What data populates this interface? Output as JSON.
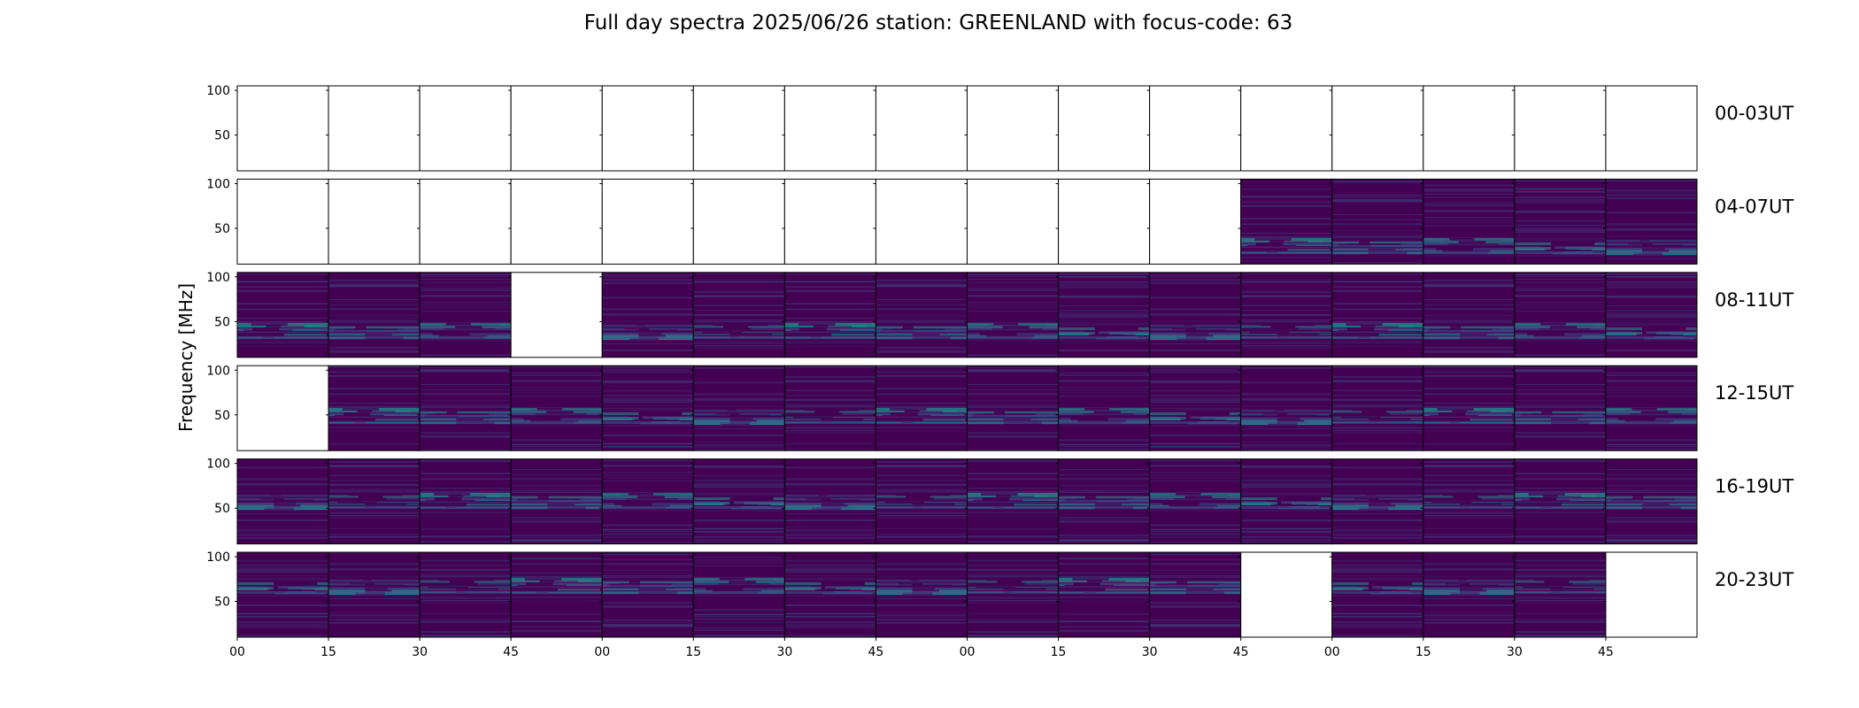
{
  "chart_data": {
    "type": "heatmap",
    "title": "Full day spectra 2025/06/26 station: GREENLAND with focus-code: 63",
    "ylabel": "Frequency [MHz]",
    "ylim": [
      10,
      105
    ],
    "yticks": [
      "100",
      "50"
    ],
    "xticks": [
      "00",
      "15",
      "30",
      "45",
      "00",
      "15",
      "30",
      "45",
      "00",
      "15",
      "30",
      "45",
      "00",
      "15",
      "30",
      "45"
    ],
    "rows": [
      {
        "label": "00-03UT",
        "panels": [
          0,
          0,
          0,
          0,
          0,
          0,
          0,
          0,
          0,
          0,
          0,
          0,
          0,
          0,
          0,
          0
        ]
      },
      {
        "label": "04-07UT",
        "panels": [
          0,
          0,
          0,
          0,
          0,
          0,
          0,
          0,
          0,
          0,
          0,
          1,
          1,
          1,
          1,
          1
        ]
      },
      {
        "label": "08-11UT",
        "panels": [
          1,
          1,
          1,
          0,
          1,
          1,
          1,
          1,
          1,
          1,
          1,
          1,
          1,
          1,
          1,
          1
        ]
      },
      {
        "label": "12-15UT",
        "panels": [
          0,
          1,
          1,
          1,
          1,
          1,
          1,
          1,
          1,
          1,
          1,
          1,
          1,
          1,
          1,
          1
        ]
      },
      {
        "label": "16-19UT",
        "panels": [
          1,
          1,
          1,
          1,
          1,
          1,
          1,
          1,
          1,
          1,
          1,
          1,
          1,
          1,
          1,
          1
        ]
      },
      {
        "label": "20-23UT",
        "panels": [
          1,
          1,
          1,
          1,
          1,
          1,
          1,
          1,
          1,
          1,
          1,
          0,
          1,
          1,
          1,
          0
        ]
      }
    ],
    "colormap": "viridis",
    "colors": {
      "background": "#440154",
      "mid": "#3b528b",
      "low": "#21918c",
      "high": "#5ec962"
    }
  }
}
